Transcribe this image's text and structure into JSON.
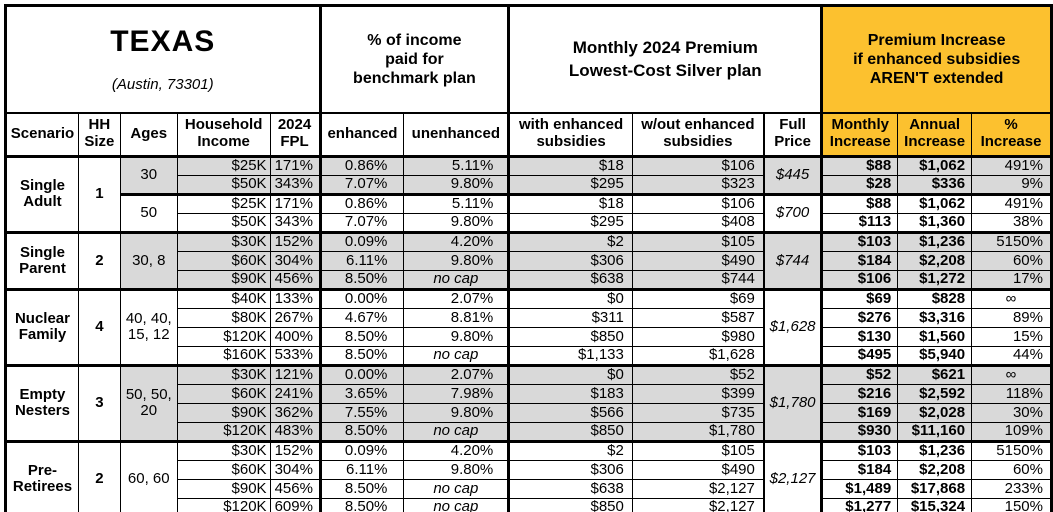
{
  "colors": {
    "accent": "#FCC12F",
    "shaded_row": "#D9D9D9",
    "border": "#000000",
    "background": "#FFFFFF"
  },
  "chart_data": {
    "type": "table",
    "title": "TEXAS",
    "subtitle": "(Austin, 73301)",
    "column_groups": [
      "% of income\npaid for\nbenchmark plan",
      "Monthly 2024 Premium\nLowest-Cost Silver plan",
      "Premium Increase\nif enhanced subsidies\nAREN'T extended"
    ],
    "columns": [
      "Scenario",
      "HH\nSize",
      "Ages",
      "Household\nIncome",
      "2024\nFPL",
      "enhanced",
      "unenhanced",
      "with enhanced\nsubsidies",
      "w/out enhanced\nsubsidies",
      "Full\nPrice",
      "Monthly\nIncrease",
      "Annual\nIncrease",
      "%\nIncrease"
    ],
    "groups": [
      {
        "scenario": "Single\nAdult",
        "hh_size": "1",
        "subgroups": [
          {
            "ages": "30",
            "full_price": "$445",
            "shaded": true,
            "rows": [
              {
                "income": "$25K",
                "fpl": "171%",
                "enhanced": "0.86%",
                "unenhanced": "5.11%",
                "with_sub": "$18",
                "wout_sub": "$106",
                "monthly": "$88",
                "annual": "$1,062",
                "pct": "491%"
              },
              {
                "income": "$50K",
                "fpl": "343%",
                "enhanced": "7.07%",
                "unenhanced": "9.80%",
                "with_sub": "$295",
                "wout_sub": "$323",
                "monthly": "$28",
                "annual": "$336",
                "pct": "9%"
              }
            ]
          },
          {
            "ages": "50",
            "full_price": "$700",
            "shaded": false,
            "rows": [
              {
                "income": "$25K",
                "fpl": "171%",
                "enhanced": "0.86%",
                "unenhanced": "5.11%",
                "with_sub": "$18",
                "wout_sub": "$106",
                "monthly": "$88",
                "annual": "$1,062",
                "pct": "491%"
              },
              {
                "income": "$50K",
                "fpl": "343%",
                "enhanced": "7.07%",
                "unenhanced": "9.80%",
                "with_sub": "$295",
                "wout_sub": "$408",
                "monthly": "$113",
                "annual": "$1,360",
                "pct": "38%"
              }
            ]
          }
        ]
      },
      {
        "scenario": "Single\nParent",
        "hh_size": "2",
        "subgroups": [
          {
            "ages": "30, 8",
            "full_price": "$744",
            "shaded": true,
            "rows": [
              {
                "income": "$30K",
                "fpl": "152%",
                "enhanced": "0.09%",
                "unenhanced": "4.20%",
                "with_sub": "$2",
                "wout_sub": "$105",
                "monthly": "$103",
                "annual": "$1,236",
                "pct": "5150%"
              },
              {
                "income": "$60K",
                "fpl": "304%",
                "enhanced": "6.11%",
                "unenhanced": "9.80%",
                "with_sub": "$306",
                "wout_sub": "$490",
                "monthly": "$184",
                "annual": "$2,208",
                "pct": "60%"
              },
              {
                "income": "$90K",
                "fpl": "456%",
                "enhanced": "8.50%",
                "unenhanced": "no cap",
                "with_sub": "$638",
                "wout_sub": "$744",
                "monthly": "$106",
                "annual": "$1,272",
                "pct": "17%"
              }
            ]
          }
        ]
      },
      {
        "scenario": "Nuclear\nFamily",
        "hh_size": "4",
        "subgroups": [
          {
            "ages": "40, 40,\n15, 12",
            "full_price": "$1,628",
            "shaded": false,
            "rows": [
              {
                "income": "$40K",
                "fpl": "133%",
                "enhanced": "0.00%",
                "unenhanced": "2.07%",
                "with_sub": "$0",
                "wout_sub": "$69",
                "monthly": "$69",
                "annual": "$828",
                "pct": "∞"
              },
              {
                "income": "$80K",
                "fpl": "267%",
                "enhanced": "4.67%",
                "unenhanced": "8.81%",
                "with_sub": "$311",
                "wout_sub": "$587",
                "monthly": "$276",
                "annual": "$3,316",
                "pct": "89%"
              },
              {
                "income": "$120K",
                "fpl": "400%",
                "enhanced": "8.50%",
                "unenhanced": "9.80%",
                "with_sub": "$850",
                "wout_sub": "$980",
                "monthly": "$130",
                "annual": "$1,560",
                "pct": "15%"
              },
              {
                "income": "$160K",
                "fpl": "533%",
                "enhanced": "8.50%",
                "unenhanced": "no cap",
                "with_sub": "$1,133",
                "wout_sub": "$1,628",
                "monthly": "$495",
                "annual": "$5,940",
                "pct": "44%"
              }
            ]
          }
        ]
      },
      {
        "scenario": "Empty\nNesters",
        "hh_size": "3",
        "subgroups": [
          {
            "ages": "50, 50,\n20",
            "full_price": "$1,780",
            "shaded": true,
            "rows": [
              {
                "income": "$30K",
                "fpl": "121%",
                "enhanced": "0.00%",
                "unenhanced": "2.07%",
                "with_sub": "$0",
                "wout_sub": "$52",
                "monthly": "$52",
                "annual": "$621",
                "pct": "∞"
              },
              {
                "income": "$60K",
                "fpl": "241%",
                "enhanced": "3.65%",
                "unenhanced": "7.98%",
                "with_sub": "$183",
                "wout_sub": "$399",
                "monthly": "$216",
                "annual": "$2,592",
                "pct": "118%"
              },
              {
                "income": "$90K",
                "fpl": "362%",
                "enhanced": "7.55%",
                "unenhanced": "9.80%",
                "with_sub": "$566",
                "wout_sub": "$735",
                "monthly": "$169",
                "annual": "$2,028",
                "pct": "30%"
              },
              {
                "income": "$120K",
                "fpl": "483%",
                "enhanced": "8.50%",
                "unenhanced": "no cap",
                "with_sub": "$850",
                "wout_sub": "$1,780",
                "monthly": "$930",
                "annual": "$11,160",
                "pct": "109%"
              }
            ]
          }
        ]
      },
      {
        "scenario": "Pre-\nRetirees",
        "hh_size": "2",
        "subgroups": [
          {
            "ages": "60, 60",
            "full_price": "$2,127",
            "shaded": false,
            "rows": [
              {
                "income": "$30K",
                "fpl": "152%",
                "enhanced": "0.09%",
                "unenhanced": "4.20%",
                "with_sub": "$2",
                "wout_sub": "$105",
                "monthly": "$103",
                "annual": "$1,236",
                "pct": "5150%"
              },
              {
                "income": "$60K",
                "fpl": "304%",
                "enhanced": "6.11%",
                "unenhanced": "9.80%",
                "with_sub": "$306",
                "wout_sub": "$490",
                "monthly": "$184",
                "annual": "$2,208",
                "pct": "60%"
              },
              {
                "income": "$90K",
                "fpl": "456%",
                "enhanced": "8.50%",
                "unenhanced": "no cap",
                "with_sub": "$638",
                "wout_sub": "$2,127",
                "monthly": "$1,489",
                "annual": "$17,868",
                "pct": "233%"
              },
              {
                "income": "$120K",
                "fpl": "609%",
                "enhanced": "8.50%",
                "unenhanced": "no cap",
                "with_sub": "$850",
                "wout_sub": "$2,127",
                "monthly": "$1,277",
                "annual": "$15,324",
                "pct": "150%"
              }
            ]
          }
        ]
      }
    ]
  }
}
